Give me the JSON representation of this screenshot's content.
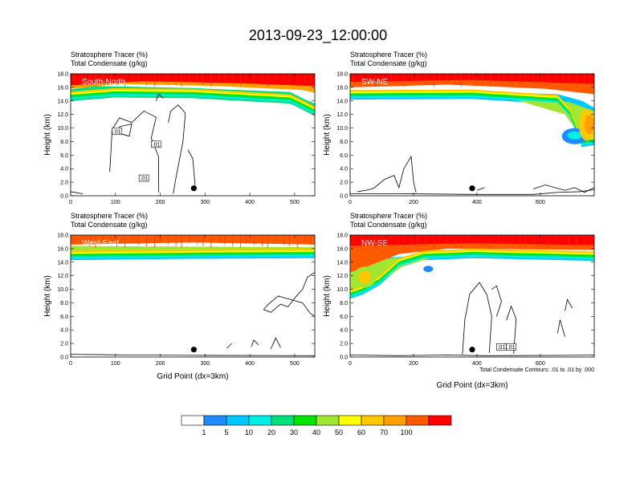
{
  "figure": {
    "title": "2013-09-23_12:00:00",
    "var1_label": "Stratosphere Tracer",
    "var1_unit": "(%)",
    "var2_label": "Total Condensate",
    "var2_unit": "(g/kg)",
    "ylabel": "Height (km)",
    "xlabel": "Grid Point (dx=3km)",
    "contour_note": "Total Condensate Contours: .01 to .01 by .000"
  },
  "colorbar": {
    "labels": [
      "1",
      "5",
      "10",
      "20",
      "30",
      "40",
      "50",
      "60",
      "70",
      "100"
    ],
    "colors": [
      "#ffffff",
      "#1e8cff",
      "#00c8ff",
      "#00f0e6",
      "#00e07a",
      "#00e600",
      "#a0e632",
      "#ffff00",
      "#ffc800",
      "#ffa000",
      "#ff5a00",
      "#ff0000"
    ]
  },
  "chart_data": [
    {
      "type": "heatmap",
      "panel": "South-North",
      "xlim": [
        0,
        545
      ],
      "ylim": [
        0,
        18
      ],
      "x_ticks": [
        0,
        100,
        200,
        300,
        400,
        500
      ],
      "y_ticks": [
        "0.0",
        "2.0",
        "4.0",
        "6.0",
        "8.0",
        "10.0",
        "12.0",
        "14.0",
        "16.0",
        "18.0"
      ],
      "tracer_band_km": [
        14.3,
        18
      ],
      "contour_labels": [
        ".01",
        ".01",
        ".01"
      ],
      "marker_x": 275
    },
    {
      "type": "heatmap",
      "panel": "SW-NE",
      "xlim": [
        0,
        770
      ],
      "ylim": [
        0,
        18
      ],
      "x_ticks": [
        0,
        200,
        400,
        600
      ],
      "y_ticks": [
        "0.0",
        "2.0",
        "4.0",
        "6.0",
        "8.0",
        "10.0",
        "12.0",
        "14.0",
        "16.0",
        "18.0"
      ],
      "tracer_band_km": [
        14.5,
        18
      ],
      "contour_labels": [],
      "marker_x": 385
    },
    {
      "type": "heatmap",
      "panel": "West-East",
      "xlim": [
        0,
        545
      ],
      "ylim": [
        0,
        18
      ],
      "x_ticks": [
        0,
        100,
        200,
        300,
        400,
        500
      ],
      "y_ticks": [
        "0.0",
        "2.0",
        "4.0",
        "6.0",
        "8.0",
        "10.0",
        "12.0",
        "14.0",
        "16.0",
        "18.0"
      ],
      "tracer_band_km": [
        14.3,
        18
      ],
      "contour_labels": [],
      "marker_x": 275
    },
    {
      "type": "heatmap",
      "panel": "NW-SE",
      "xlim": [
        0,
        770
      ],
      "ylim": [
        0,
        18
      ],
      "x_ticks": [
        0,
        200,
        400,
        600
      ],
      "y_ticks": [
        "0.0",
        "2.0",
        "4.0",
        "6.0",
        "8.0",
        "10.0",
        "12.0",
        "14.0",
        "16.0",
        "18.0"
      ],
      "tracer_band_km": [
        14.3,
        18
      ],
      "contour_labels": [
        ".01",
        ".01"
      ],
      "marker_x": 385
    }
  ]
}
